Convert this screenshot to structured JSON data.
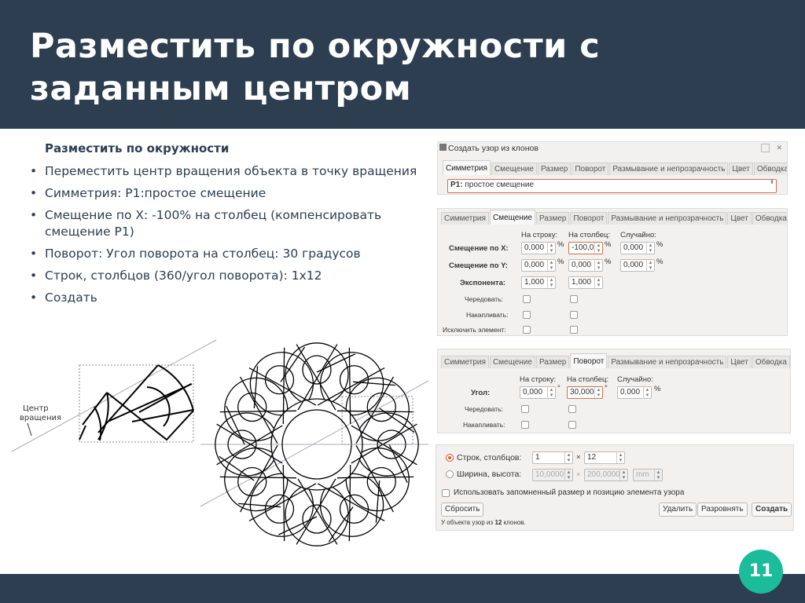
{
  "slide": {
    "title_line1": "Разместить по окружности с",
    "title_line2": "заданным центром",
    "subtitle": "Разместить по окружности",
    "bullets": [
      "Переместить центр вращения объекта в точку вращения",
      "Симметрия: P1:простое смещение",
      "Смещение по X: -100% на столбец (компенсировать смещение P1)",
      "Поворот: Угол поворота на столбец: 30 градусов",
      "Строк, столбцов (360/угол поворота): 1x12",
      "Создать"
    ],
    "page_number": "11",
    "rotation_center_label_1": "Центр",
    "rotation_center_label_2": "вращения"
  },
  "colors": {
    "header": "#2c3e50",
    "badge": "#1abc9c",
    "accent": "#e05a2b"
  },
  "dialog": {
    "title": "Создать узор из клонов",
    "tabs": [
      "Симметрия",
      "Смещение",
      "Размер",
      "Поворот",
      "Размывание и непрозрачность",
      "Цвет",
      "Обводка"
    ],
    "symmetry_bold": "P1:",
    "symmetry_value": "простое смещение",
    "col_row": "На строку:",
    "col_col": "На столбец:",
    "col_rand": "Случайно:",
    "shift": {
      "x_label": "Смещение по X:",
      "y_label": "Смещение по Y:",
      "exp_label": "Экспонента:",
      "x": [
        "0,000",
        "-100,0",
        "0,000"
      ],
      "y": [
        "0,000",
        "0,000",
        "0,000"
      ],
      "exp": [
        "1,000",
        "1,000"
      ],
      "pct": "%",
      "alternate": "Чередовать:",
      "cumulate": "Накапливать:",
      "exclude": "Исключить элемент:"
    },
    "rotation": {
      "angle_label": "Угол:",
      "values": [
        "0,000",
        "30,000",
        "0,000"
      ],
      "deg": "°",
      "pct": "%",
      "alternate": "Чередовать:",
      "cumulate": "Накапливать:"
    },
    "grid": {
      "rows_cols_label": "Строк, столбцов:",
      "rows": "1",
      "cols": "12",
      "x": "×",
      "wh_label": "Ширина, высота:",
      "width": "10,0000",
      "height": "200,0000",
      "unit": "mm",
      "use_saved": "Использовать запомненный размер и позицию элемента узора",
      "reset": "Сбросить",
      "remove": "Удалить",
      "unclump": "Разровнять",
      "create": "Создать",
      "status_pre": "У объекта узор из",
      "status_count": "12",
      "status_post": "клонов."
    }
  }
}
